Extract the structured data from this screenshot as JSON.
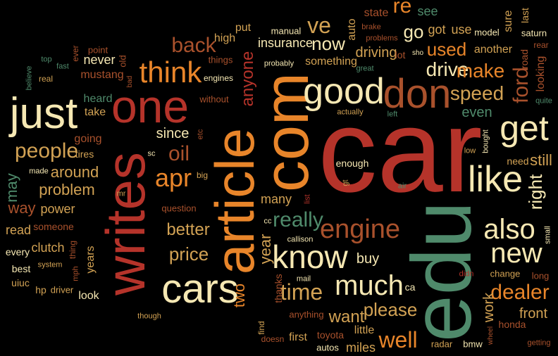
{
  "palette": {
    "background": "#000000",
    "red": "#B5332A",
    "orange": "#E8852A",
    "cream": "#F6E8B3",
    "green": "#4F8A6B",
    "rust": "#A9512C",
    "gold": "#D2A254"
  },
  "words": [
    {
      "text": "car",
      "color": "red",
      "rotated": false
    },
    {
      "text": "edu",
      "color": "green",
      "rotated": true
    },
    {
      "text": "com",
      "color": "orange",
      "rotated": true
    },
    {
      "text": "article",
      "color": "orange",
      "rotated": true
    },
    {
      "text": "writes",
      "color": "red",
      "rotated": true
    },
    {
      "text": "one",
      "color": "red",
      "rotated": false
    },
    {
      "text": "just",
      "color": "cream",
      "rotated": false
    },
    {
      "text": "don",
      "color": "rust",
      "rotated": false
    },
    {
      "text": "cars",
      "color": "cream",
      "rotated": false
    },
    {
      "text": "good",
      "color": "cream",
      "rotated": false
    },
    {
      "text": "like",
      "color": "cream",
      "rotated": false
    },
    {
      "text": "think",
      "color": "orange",
      "rotated": false
    },
    {
      "text": "know",
      "color": "cream",
      "rotated": false
    },
    {
      "text": "get",
      "color": "cream",
      "rotated": false
    },
    {
      "text": "engine",
      "color": "rust",
      "rotated": false
    },
    {
      "text": "also",
      "color": "cream",
      "rotated": false
    },
    {
      "text": "new",
      "color": "cream",
      "rotated": false
    },
    {
      "text": "much",
      "color": "cream",
      "rotated": false
    },
    {
      "text": "apr",
      "color": "orange",
      "rotated": false
    },
    {
      "text": "oil",
      "color": "rust",
      "rotated": false
    },
    {
      "text": "people",
      "color": "gold",
      "rotated": false
    },
    {
      "text": "time",
      "color": "gold",
      "rotated": false
    },
    {
      "text": "speed",
      "color": "gold",
      "rotated": false
    },
    {
      "text": "ford",
      "color": "rust",
      "rotated": true
    },
    {
      "text": "well",
      "color": "orange",
      "rotated": false
    },
    {
      "text": "please",
      "color": "gold",
      "rotated": false
    },
    {
      "text": "dealer",
      "color": "orange",
      "rotated": false
    },
    {
      "text": "really",
      "color": "green",
      "rotated": false
    },
    {
      "text": "back",
      "color": "rust",
      "rotated": false
    },
    {
      "text": "price",
      "color": "gold",
      "rotated": false
    },
    {
      "text": "better",
      "color": "gold",
      "rotated": false
    },
    {
      "text": "drive",
      "color": "cream",
      "rotated": false
    },
    {
      "text": "make",
      "color": "orange",
      "rotated": false
    },
    {
      "text": "used",
      "color": "orange",
      "rotated": false
    },
    {
      "text": "now",
      "color": "cream",
      "rotated": false
    },
    {
      "text": "ve",
      "color": "gold",
      "rotated": false
    },
    {
      "text": "re",
      "color": "orange",
      "rotated": false
    },
    {
      "text": "anyone",
      "color": "red",
      "rotated": true
    },
    {
      "text": "want",
      "color": "gold",
      "rotated": false
    },
    {
      "text": "problem",
      "color": "gold",
      "rotated": false
    },
    {
      "text": "around",
      "color": "gold",
      "rotated": false
    },
    {
      "text": "since",
      "color": "cream",
      "rotated": false
    },
    {
      "text": "two",
      "color": "orange",
      "rotated": true
    },
    {
      "text": "year",
      "color": "gold",
      "rotated": true
    },
    {
      "text": "right",
      "color": "cream",
      "rotated": true
    },
    {
      "text": "still",
      "color": "gold",
      "rotated": false
    },
    {
      "text": "even",
      "color": "green",
      "rotated": false
    },
    {
      "text": "driving",
      "color": "gold",
      "rotated": false
    },
    {
      "text": "go",
      "color": "cream",
      "rotated": false
    },
    {
      "text": "front",
      "color": "gold",
      "rotated": false
    },
    {
      "text": "work",
      "color": "gold",
      "rotated": true
    },
    {
      "text": "buy",
      "color": "cream",
      "rotated": false
    },
    {
      "text": "may",
      "color": "green",
      "rotated": true
    },
    {
      "text": "way",
      "color": "rust",
      "rotated": false
    },
    {
      "text": "power",
      "color": "gold",
      "rotated": false
    },
    {
      "text": "clutch",
      "color": "gold",
      "rotated": false
    },
    {
      "text": "read",
      "color": "gold",
      "rotated": false
    },
    {
      "text": "many",
      "color": "gold",
      "rotated": false
    },
    {
      "text": "insurance",
      "color": "cream",
      "rotated": false
    },
    {
      "text": "something",
      "color": "gold",
      "rotated": false
    },
    {
      "text": "another",
      "color": "gold",
      "rotated": false
    },
    {
      "text": "got",
      "color": "gold",
      "rotated": false
    },
    {
      "text": "use",
      "color": "gold",
      "rotated": false
    },
    {
      "text": "see",
      "color": "green",
      "rotated": false
    },
    {
      "text": "state",
      "color": "rust",
      "rotated": false
    },
    {
      "text": "never",
      "color": "cream",
      "rotated": false
    },
    {
      "text": "mustang",
      "color": "rust",
      "rotated": false
    },
    {
      "text": "heard",
      "color": "green",
      "rotated": false
    },
    {
      "text": "take",
      "color": "gold",
      "rotated": false
    },
    {
      "text": "going",
      "color": "rust",
      "rotated": false
    },
    {
      "text": "tires",
      "color": "gold",
      "rotated": false
    },
    {
      "text": "years",
      "color": "gold",
      "rotated": true
    },
    {
      "text": "look",
      "color": "cream",
      "rotated": false
    },
    {
      "text": "little",
      "color": "gold",
      "rotated": false
    },
    {
      "text": "miles",
      "color": "gold",
      "rotated": false
    },
    {
      "text": "thanks",
      "color": "rust",
      "rotated": true
    },
    {
      "text": "first",
      "color": "gold",
      "rotated": false
    },
    {
      "text": "honda",
      "color": "rust",
      "rotated": false
    },
    {
      "text": "put",
      "color": "gold",
      "rotated": false
    },
    {
      "text": "high",
      "color": "gold",
      "rotated": false
    },
    {
      "text": "manual",
      "color": "cream",
      "rotated": false
    },
    {
      "text": "auto",
      "color": "gold",
      "rotated": true
    },
    {
      "text": "sure",
      "color": "gold",
      "rotated": true
    },
    {
      "text": "last",
      "color": "gold",
      "rotated": true
    },
    {
      "text": "model",
      "color": "cream",
      "rotated": false
    },
    {
      "text": "saturn",
      "color": "cream",
      "rotated": false
    },
    {
      "text": "road",
      "color": "rust",
      "rotated": true
    },
    {
      "text": "looking",
      "color": "rust",
      "rotated": true
    },
    {
      "text": "every",
      "color": "cream",
      "rotated": false
    },
    {
      "text": "best",
      "color": "cream",
      "rotated": false
    },
    {
      "text": "uiuc",
      "color": "gold",
      "rotated": false
    },
    {
      "text": "hp",
      "color": "gold",
      "rotated": false
    },
    {
      "text": "driver",
      "color": "gold",
      "rotated": false
    },
    {
      "text": "someone",
      "color": "rust",
      "rotated": false
    },
    {
      "text": "ca",
      "color": "cream",
      "rotated": false
    },
    {
      "text": "enough",
      "color": "cream",
      "rotated": false
    },
    {
      "text": "need",
      "color": "gold",
      "rotated": false
    },
    {
      "text": "change",
      "color": "gold",
      "rotated": false
    },
    {
      "text": "long",
      "color": "rust",
      "rotated": false
    },
    {
      "text": "lot",
      "color": "rust",
      "rotated": false
    },
    {
      "text": "things",
      "color": "rust",
      "rotated": false
    },
    {
      "text": "engines",
      "color": "cream",
      "rotated": false
    },
    {
      "text": "without",
      "color": "rust",
      "rotated": false
    },
    {
      "text": "question",
      "color": "rust",
      "rotated": false
    },
    {
      "text": "point",
      "color": "rust",
      "rotated": false
    },
    {
      "text": "top",
      "color": "green",
      "rotated": false
    },
    {
      "text": "fast",
      "color": "green",
      "rotated": false
    },
    {
      "text": "real",
      "color": "gold",
      "rotated": false
    },
    {
      "text": "believe",
      "color": "green",
      "rotated": true
    },
    {
      "text": "ever",
      "color": "rust",
      "rotated": true
    },
    {
      "text": "old",
      "color": "rust",
      "rotated": true
    },
    {
      "text": "bad",
      "color": "rust",
      "rotated": true
    },
    {
      "text": "etc",
      "color": "rust",
      "rotated": true
    },
    {
      "text": "sc",
      "color": "cream",
      "rotated": false
    },
    {
      "text": "big",
      "color": "gold",
      "rotated": false
    },
    {
      "text": "mr",
      "color": "gold",
      "rotated": false
    },
    {
      "text": "made",
      "color": "cream",
      "rotated": false
    },
    {
      "text": "thing",
      "color": "rust",
      "rotated": true
    },
    {
      "text": "mph",
      "color": "rust",
      "rotated": true
    },
    {
      "text": "system",
      "color": "gold",
      "rotated": false
    },
    {
      "text": "probably",
      "color": "cream",
      "rotated": false
    },
    {
      "text": "great",
      "color": "green",
      "rotated": false
    },
    {
      "text": "brake",
      "color": "rust",
      "rotated": false
    },
    {
      "text": "problems",
      "color": "rust",
      "rotated": false
    },
    {
      "text": "sho",
      "color": "cream",
      "rotated": false
    },
    {
      "text": "rear",
      "color": "rust",
      "rotated": false
    },
    {
      "text": "quite",
      "color": "green",
      "rotated": false
    },
    {
      "text": "actually",
      "color": "gold",
      "rotated": false
    },
    {
      "text": "left",
      "color": "green",
      "rotated": false
    },
    {
      "text": "bought",
      "color": "cream",
      "rotated": true
    },
    {
      "text": "low",
      "color": "gold",
      "rotated": false
    },
    {
      "text": "air",
      "color": "green",
      "rotated": false
    },
    {
      "text": "gt",
      "color": "gold",
      "rotated": true
    },
    {
      "text": "list",
      "color": "red",
      "rotated": true
    },
    {
      "text": "cc",
      "color": "cream",
      "rotated": false
    },
    {
      "text": "callison",
      "color": "cream",
      "rotated": false
    },
    {
      "text": "mail",
      "color": "cream",
      "rotated": false
    },
    {
      "text": "anything",
      "color": "rust",
      "rotated": false
    },
    {
      "text": "didn",
      "color": "red",
      "rotated": false
    },
    {
      "text": "small",
      "color": "cream",
      "rotated": true
    },
    {
      "text": "find",
      "color": "gold",
      "rotated": true
    },
    {
      "text": "doesn",
      "color": "rust",
      "rotated": false
    },
    {
      "text": "toyota",
      "color": "rust",
      "rotated": false
    },
    {
      "text": "autos",
      "color": "cream",
      "rotated": false
    },
    {
      "text": "radar",
      "color": "gold",
      "rotated": false
    },
    {
      "text": "bmw",
      "color": "cream",
      "rotated": false
    },
    {
      "text": "wheel",
      "color": "rust",
      "rotated": true
    },
    {
      "text": "getting",
      "color": "rust",
      "rotated": false
    },
    {
      "text": "though",
      "color": "gold",
      "rotated": false
    }
  ]
}
